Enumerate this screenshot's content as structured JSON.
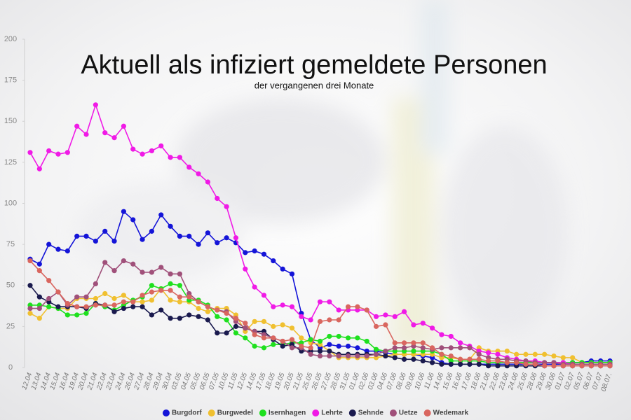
{
  "chart_data": {
    "type": "line",
    "title": "Aktuell als infiziert gemeldete Personen",
    "subtitle": "der vergangenen drei Monate",
    "categories": [
      "12.04",
      "13.04",
      "14.04",
      "15.04",
      "16.04",
      "19.04",
      "20.04",
      "21.04",
      "22.04",
      "23.04",
      "24.04",
      "26.04",
      "27.04",
      "28.04",
      "29.04",
      "30.04",
      "03.05",
      "04.05",
      "05.05",
      "06.05",
      "07.05",
      "10.05",
      "11.05",
      "12.05",
      "14.05",
      "17.05",
      "18.05",
      "19.05",
      "20.05",
      "21.05",
      "25.05",
      "26.05",
      "27.05",
      "28.05",
      "31.05",
      "01.06",
      "02.06",
      "03.06",
      "04.06",
      "07.06",
      "08.06",
      "09.06",
      "10.06",
      "11.06",
      "14.06",
      "15.06",
      "16.06",
      "17.06",
      "18.06",
      "21.06",
      "22.06",
      "23.06",
      "24.06",
      "25.06",
      "28.06",
      "29.06",
      "30.06",
      "01.07",
      "02.07",
      "05.07",
      "06.07",
      "07.07",
      "08.07."
    ],
    "series": [
      {
        "name": "Burgdorf",
        "color": "#1414d8",
        "values": [
          66,
          63,
          75,
          72,
          71,
          80,
          80,
          77,
          83,
          77,
          95,
          90,
          78,
          83,
          93,
          86,
          80,
          80,
          75,
          82,
          76,
          79,
          76,
          70,
          71,
          69,
          65,
          60,
          57,
          33,
          17,
          12,
          14,
          13,
          13,
          12,
          10,
          10,
          9,
          8,
          8,
          8,
          7,
          6,
          3,
          2,
          2,
          2,
          2,
          2,
          2,
          2,
          2,
          2,
          2,
          2,
          2,
          2,
          3,
          3,
          4,
          4,
          4
        ]
      },
      {
        "name": "Burgwedel",
        "color": "#f0c030",
        "values": [
          33,
          30,
          37,
          36,
          36,
          42,
          42,
          42,
          45,
          42,
          44,
          40,
          40,
          41,
          48,
          41,
          40,
          40,
          36,
          34,
          36,
          36,
          32,
          22,
          28,
          28,
          25,
          26,
          24,
          18,
          15,
          14,
          10,
          6,
          6,
          6,
          6,
          6,
          7,
          8,
          8,
          8,
          8,
          8,
          6,
          6,
          5,
          5,
          12,
          10,
          10,
          10,
          8,
          8,
          8,
          8,
          7,
          6,
          6,
          3,
          3,
          3,
          3
        ]
      },
      {
        "name": "Isernhagen",
        "color": "#1ee01e",
        "values": [
          38,
          38,
          37,
          36,
          32,
          32,
          33,
          39,
          37,
          35,
          38,
          41,
          43,
          50,
          48,
          51,
          50,
          41,
          41,
          38,
          31,
          29,
          21,
          18,
          13,
          12,
          14,
          14,
          15,
          15,
          17,
          16,
          19,
          19,
          18,
          18,
          16,
          11,
          10,
          10,
          10,
          10,
          10,
          10,
          8,
          4,
          4,
          4,
          4,
          3,
          3,
          3,
          3,
          3,
          3,
          3,
          3,
          3,
          3,
          3,
          3,
          3,
          3
        ]
      },
      {
        "name": "Lehrte",
        "color": "#f01ae6",
        "values": [
          131,
          121,
          132,
          130,
          131,
          147,
          142,
          160,
          143,
          140,
          147,
          133,
          130,
          132,
          135,
          128,
          128,
          122,
          118,
          113,
          103,
          98,
          79,
          60,
          49,
          44,
          37,
          38,
          37,
          31,
          29,
          40,
          40,
          35,
          35,
          35,
          35,
          31,
          32,
          31,
          34,
          26,
          27,
          24,
          20,
          19,
          15,
          13,
          10,
          9,
          8,
          6,
          5,
          4,
          4,
          3,
          3,
          3,
          2,
          2,
          2,
          2,
          2
        ]
      },
      {
        "name": "Sehnde",
        "color": "#1a1a4e",
        "values": [
          50,
          43,
          40,
          37,
          37,
          37,
          36,
          39,
          38,
          34,
          36,
          37,
          37,
          32,
          35,
          30,
          30,
          32,
          31,
          29,
          21,
          21,
          25,
          24,
          22,
          22,
          17,
          13,
          14,
          10,
          10,
          10,
          10,
          8,
          8,
          8,
          8,
          8,
          7,
          6,
          5,
          5,
          4,
          3,
          2,
          2,
          2,
          2,
          2,
          1,
          1,
          1,
          1,
          1,
          1,
          1,
          1,
          1,
          1,
          1,
          1,
          1,
          1
        ]
      },
      {
        "name": "Uetze",
        "color": "#a0507a",
        "values": [
          36,
          36,
          42,
          46,
          38,
          43,
          43,
          51,
          64,
          59,
          65,
          63,
          58,
          58,
          61,
          57,
          57,
          45,
          40,
          37,
          35,
          34,
          28,
          24,
          22,
          20,
          18,
          16,
          12,
          12,
          8,
          7,
          7,
          7,
          7,
          7,
          7,
          8,
          10,
          12,
          12,
          13,
          12,
          11,
          12,
          12,
          12,
          12,
          8,
          6,
          5,
          5,
          4,
          4,
          3,
          3,
          3,
          2,
          2,
          2,
          2,
          2,
          2
        ]
      },
      {
        "name": "Wedemark",
        "color": "#d9665f",
        "values": [
          65,
          59,
          53,
          46,
          39,
          37,
          37,
          38,
          38,
          38,
          40,
          40,
          44,
          46,
          47,
          47,
          43,
          43,
          40,
          37,
          35,
          33,
          30,
          27,
          20,
          18,
          18,
          16,
          17,
          13,
          12,
          28,
          29,
          29,
          37,
          37,
          35,
          25,
          26,
          15,
          15,
          15,
          15,
          12,
          8,
          7,
          5,
          5,
          5,
          4,
          4,
          3,
          3,
          2,
          2,
          1,
          1,
          1,
          1,
          1,
          1,
          1,
          1
        ]
      }
    ],
    "ylim": [
      0,
      200
    ],
    "yticks": [
      0,
      25,
      50,
      75,
      100,
      125,
      150,
      175,
      200
    ],
    "grid": false,
    "markers": true,
    "legend": "bottom"
  }
}
